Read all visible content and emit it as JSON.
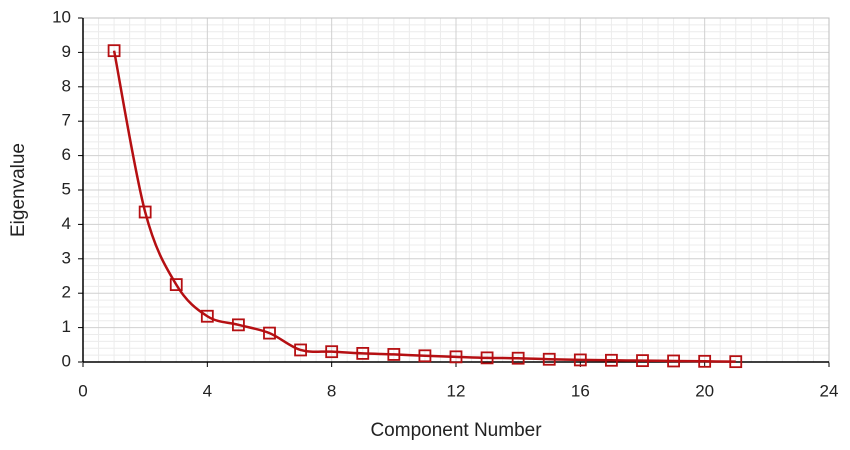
{
  "chart_data": {
    "type": "line",
    "x_label": "Component Number",
    "y_label": "Eigenvalue",
    "series": [
      {
        "color": "#b50f12",
        "x": [
          1,
          2,
          3,
          4,
          5,
          6,
          7,
          8,
          9,
          10,
          11,
          12,
          13,
          14,
          15,
          16,
          17,
          18,
          19,
          20,
          21
        ],
        "values": [
          9.05,
          4.36,
          2.25,
          1.33,
          1.08,
          0.84,
          0.35,
          0.3,
          0.25,
          0.22,
          0.18,
          0.15,
          0.12,
          0.11,
          0.08,
          0.06,
          0.05,
          0.04,
          0.03,
          0.02,
          0.01
        ]
      }
    ],
    "xlim": [
      0,
      24
    ],
    "xticks": [
      0,
      4,
      8,
      12,
      16,
      20,
      24
    ],
    "ylim": [
      0,
      10
    ],
    "yticks": [
      0,
      1,
      2,
      3,
      4,
      5,
      6,
      7,
      8,
      9,
      10
    ],
    "grid": true,
    "marker": "square",
    "smooth": true
  }
}
